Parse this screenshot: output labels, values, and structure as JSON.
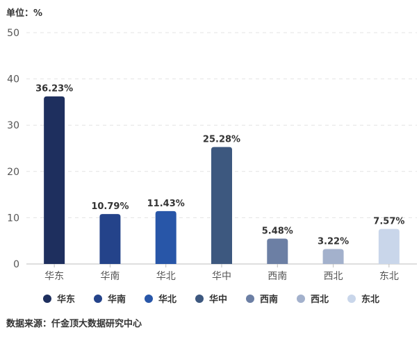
{
  "unit_label": "单位：%",
  "source": "数据来源：仟金顶大数据研究中心",
  "colors": {
    "华东": "#1e2f5e",
    "华南": "#24438a",
    "华北": "#2856a8",
    "华中": "#3d587f",
    "西南": "#6c7fa4",
    "西北": "#a3b1cc",
    "东北": "#c9d6ea"
  },
  "chart_data": {
    "type": "bar",
    "categories": [
      "华东",
      "华南",
      "华北",
      "华中",
      "西南",
      "西北",
      "东北"
    ],
    "values": [
      36.23,
      10.79,
      11.43,
      25.28,
      5.48,
      3.22,
      7.57
    ],
    "data_labels": [
      "36.23%",
      "10.79%",
      "11.43%",
      "25.28%",
      "5.48%",
      "3.22%",
      "7.57%"
    ],
    "yticks": [
      "0",
      "10",
      "20",
      "30",
      "40",
      "50"
    ],
    "ylim": [
      0,
      50
    ],
    "grid": true,
    "legend_position": "bottom",
    "xlabel": "",
    "ylabel": ""
  }
}
